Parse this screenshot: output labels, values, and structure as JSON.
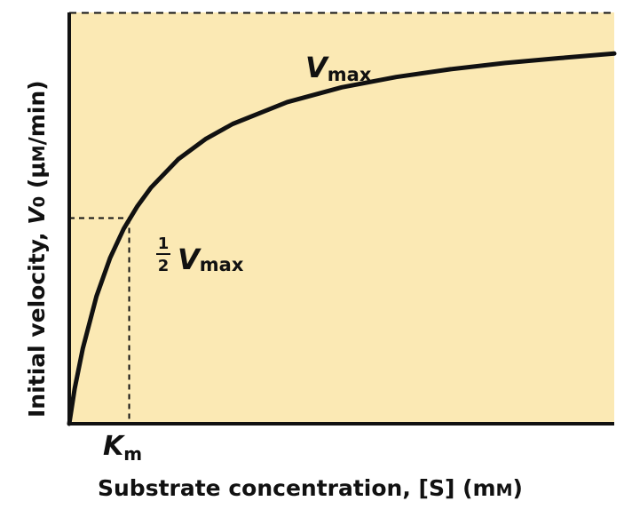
{
  "colors": {
    "background": "#fbe9b4",
    "curve": "#111111",
    "axis": "#111111",
    "guide": "#111111"
  },
  "chart_data": {
    "type": "line",
    "title": "",
    "xlabel": "Substrate concentration, [S] (mM)",
    "ylabel": "Initial velocity, V0 (μM/min)",
    "xlim": [
      0,
      10
    ],
    "ylim": [
      0,
      1.0
    ],
    "grid": false,
    "legend": "none",
    "series": [
      {
        "x": [
          0,
          0.1,
          0.25,
          0.5,
          0.75,
          1.0,
          1.25,
          1.5,
          2.0,
          2.5,
          3.0,
          4.0,
          5.0,
          6.0,
          7.0,
          8.0,
          9.0,
          10.0
        ],
        "y": [
          0,
          0.085,
          0.183,
          0.31,
          0.403,
          0.474,
          0.529,
          0.574,
          0.643,
          0.692,
          0.729,
          0.782,
          0.818,
          0.843,
          0.862,
          0.877,
          0.889,
          0.9
        ]
      }
    ],
    "annotations": {
      "vmax": {
        "value": 0.999,
        "label_main": "V",
        "label_sub": "max"
      },
      "half_vmax": {
        "value": 0.5,
        "num": "1",
        "den": "2",
        "label_main": "V",
        "label_sub": "max"
      },
      "km": {
        "value": 1.1,
        "label_main": "K",
        "label_sub": "m"
      }
    },
    "axis_labels": {
      "x": {
        "text": "Substrate concentration, [S] (m",
        "unit_sc": "M",
        "close": ")"
      },
      "y": {
        "text1": "Initial velocity, ",
        "v": "V",
        "sub": "0",
        "text2": " (μ",
        "unit_sc": "M",
        "text3": "/min)"
      }
    }
  }
}
